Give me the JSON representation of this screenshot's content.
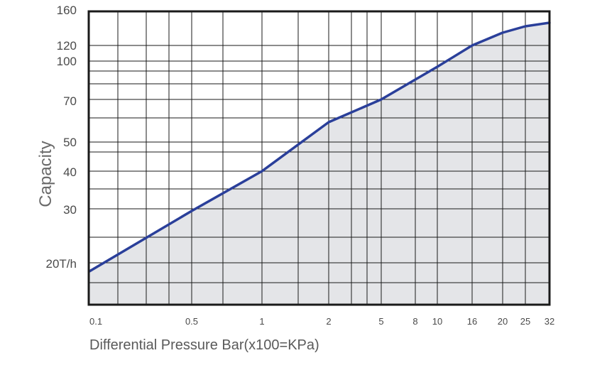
{
  "chart_data": {
    "type": "area",
    "ylabel": "Capacity",
    "xlabel": "Differential Pressure Bar(x100=KPa)",
    "x_categories": [
      "0.1",
      "0.5",
      "1",
      "2",
      "5",
      "8",
      "10",
      "16",
      "20",
      "25",
      "32"
    ],
    "y_ticks": [
      {
        "value": 160,
        "label": "160"
      },
      {
        "value": 120,
        "label": "120"
      },
      {
        "value": 100,
        "label": "100"
      },
      {
        "value": 70,
        "label": "70"
      },
      {
        "value": 50,
        "label": "50"
      },
      {
        "value": 40,
        "label": "40"
      },
      {
        "value": 30,
        "label": "30"
      },
      {
        "value": 20,
        "label": "20T/h"
      }
    ],
    "series": [
      {
        "x": [
          "0.1",
          "0.5",
          "1",
          "2",
          "5",
          "8",
          "10",
          "16",
          "20",
          "25",
          "32"
        ],
        "y": [
          18,
          29,
          40,
          56,
          70,
          84,
          94,
          122,
          136,
          142,
          145
        ]
      }
    ],
    "colors": {
      "line": "#2a3f9a",
      "fill": "#e4e5e8",
      "grid": "#1a1a1a"
    },
    "grid": true
  }
}
